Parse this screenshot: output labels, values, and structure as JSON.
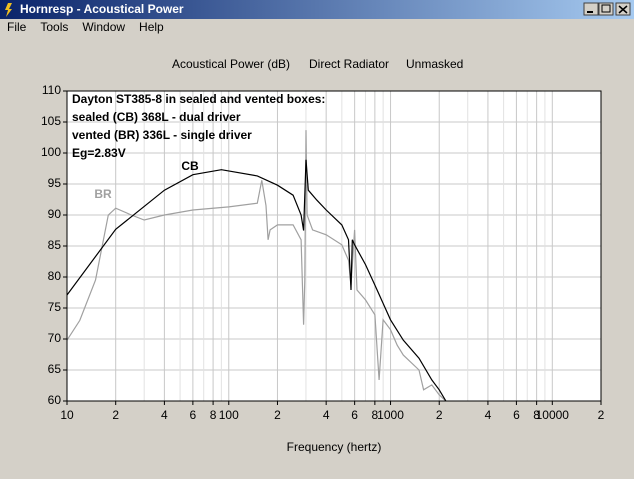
{
  "window": {
    "title": "Hornresp - Acoustical Power",
    "menu": [
      "File",
      "Tools",
      "Window",
      "Help"
    ]
  },
  "chart_data": {
    "type": "line",
    "title": [
      "Acoustical Power (dB)",
      "Direct Radiator",
      "Unmasked"
    ],
    "xlabel": "Frequency (hertz)",
    "annotation": [
      "Dayton ST385-8 in sealed and vented boxes:",
      "sealed (CB) 368L - dual driver",
      "vented (BR) 336L - single driver",
      "Eg=2.83V"
    ],
    "xscale": "log",
    "xlim": [
      10,
      20000
    ],
    "ylim": [
      60,
      110
    ],
    "xticks": [
      10,
      {
        "value": 20,
        "label": "2"
      },
      {
        "value": 40,
        "label": "4"
      },
      {
        "value": 60,
        "label": "6"
      },
      {
        "value": 80,
        "label": "8"
      },
      100,
      {
        "value": 200,
        "label": "2"
      },
      {
        "value": 400,
        "label": "4"
      },
      {
        "value": 600,
        "label": "6"
      },
      {
        "value": 800,
        "label": "8"
      },
      1000,
      {
        "value": 2000,
        "label": "2"
      },
      {
        "value": 4000,
        "label": "4"
      },
      {
        "value": 6000,
        "label": "6"
      },
      {
        "value": 8000,
        "label": "8"
      },
      10000,
      {
        "value": 20000,
        "label": "2"
      }
    ],
    "xminor": [
      30,
      50,
      70,
      90,
      300,
      500,
      700,
      900,
      3000,
      5000,
      7000,
      9000
    ],
    "yticks": [
      60,
      65,
      70,
      75,
      80,
      85,
      90,
      95,
      100,
      105,
      110
    ],
    "grid": true,
    "series": [
      {
        "name": "CB",
        "color": "#000000",
        "x": [
          10,
          20,
          40,
          60,
          90,
          150,
          200,
          250,
          280,
          290,
          300,
          310,
          350,
          400,
          500,
          550,
          570,
          580,
          600,
          700,
          800,
          1000,
          1200,
          1500,
          1800,
          2000,
          2200
        ],
        "values": [
          77.1,
          87.7,
          94,
          96.5,
          97.3,
          96.3,
          94.8,
          93.2,
          90,
          87.5,
          98.9,
          94,
          92.4,
          90.8,
          88.4,
          86,
          77.9,
          86,
          85.2,
          82,
          78.7,
          73.1,
          69.8,
          66.9,
          63.4,
          61.8,
          60
        ]
      },
      {
        "name": "BR",
        "color": "#a0a0a0",
        "x": [
          10,
          12,
          15,
          18,
          20,
          25,
          30,
          40,
          60,
          100,
          150,
          160,
          170,
          175,
          180,
          200,
          250,
          280,
          290,
          295,
          300,
          305,
          330,
          400,
          500,
          550,
          570,
          600,
          620,
          700,
          800,
          850,
          900,
          1000,
          1100,
          1200,
          1500,
          1600,
          1800,
          2000,
          2200
        ],
        "values": [
          69.8,
          73,
          79.5,
          90,
          91.1,
          90,
          89.2,
          90,
          90.8,
          91.3,
          91.9,
          95.6,
          91.5,
          86,
          87.6,
          88.4,
          88.4,
          86,
          72.3,
          79.5,
          103.7,
          90,
          87.6,
          86.8,
          85.2,
          82.7,
          78.7,
          87.6,
          77.9,
          76.3,
          73.9,
          63.4,
          73.1,
          71.5,
          69,
          67.4,
          65,
          61.8,
          62.6,
          61,
          60
        ]
      }
    ]
  }
}
